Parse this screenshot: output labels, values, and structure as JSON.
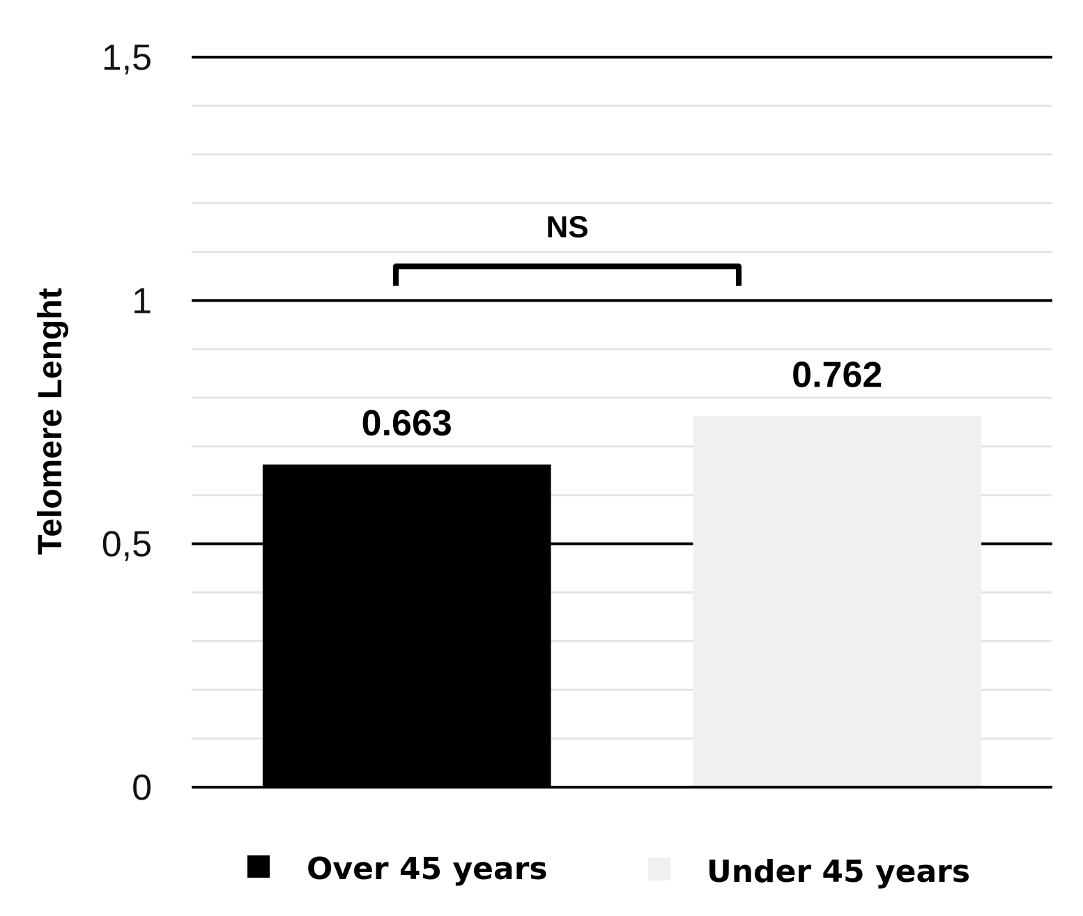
{
  "chart_data": {
    "type": "bar",
    "categories": [
      "Over 45 years",
      "Under 45 years"
    ],
    "series": [
      {
        "name": "Over 45 years",
        "values": [
          0.663,
          null
        ],
        "color": "#000000"
      },
      {
        "name": "Under 45 years",
        "values": [
          null,
          0.762
        ],
        "color": "#f0f0f0"
      }
    ],
    "values": [
      0.663,
      0.762
    ],
    "data_labels": [
      "0.663",
      "0.762"
    ],
    "ylabel": "Telomere Lenght",
    "ylim": [
      0,
      1.5
    ],
    "major_ticks": [
      0,
      0.5,
      1,
      1.5
    ],
    "tick_labels": [
      "0",
      "0,5",
      "1",
      "1,5"
    ],
    "minor_gridline_step": 0.1,
    "grid": true,
    "legend": {
      "position": "bottom",
      "entries": [
        {
          "label": "Over 45 years",
          "color": "#000000"
        },
        {
          "label": "Under 45 years",
          "color": "#f0f0f0"
        }
      ]
    },
    "annotations": [
      {
        "text": "NS",
        "type": "significance-bracket",
        "between": [
          "Over 45 years",
          "Under 45 years"
        ]
      }
    ]
  }
}
